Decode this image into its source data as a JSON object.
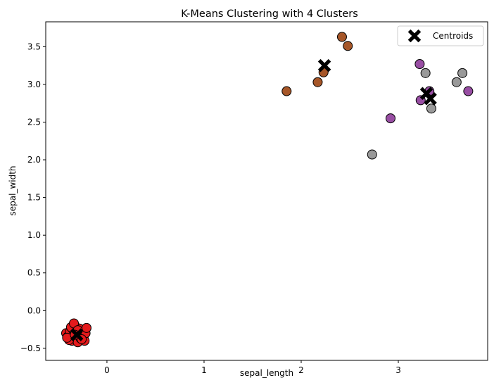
{
  "chart_data": {
    "type": "scatter",
    "title": "K-Means Clustering with 4 Clusters",
    "xlabel": "sepal_length",
    "ylabel": "sepal_width",
    "xlim": [
      -0.63,
      3.92
    ],
    "ylim": [
      -0.66,
      3.83
    ],
    "xticks": [
      0,
      1,
      2,
      3
    ],
    "yticks": [
      -0.5,
      0.0,
      0.5,
      1.0,
      1.5,
      2.0,
      2.5,
      3.0,
      3.5
    ],
    "ytick_labels": [
      "−0.5",
      "0.0",
      "0.5",
      "1.0",
      "1.5",
      "2.0",
      "2.5",
      "3.0",
      "3.5"
    ],
    "xtick_labels": [
      "0",
      "1",
      "2",
      "3"
    ],
    "grid": false,
    "legend": {
      "position": "top-right",
      "entries": [
        {
          "label": "Centroids",
          "marker": "X",
          "color": "#000000"
        }
      ]
    },
    "series": [
      {
        "cluster": 0,
        "color": "#e41a1c",
        "points": [
          [
            -0.42,
            -0.3
          ],
          [
            -0.4,
            -0.34
          ],
          [
            -0.38,
            -0.28
          ],
          [
            -0.36,
            -0.4
          ],
          [
            -0.35,
            -0.25
          ],
          [
            -0.34,
            -0.33
          ],
          [
            -0.33,
            -0.2
          ],
          [
            -0.32,
            -0.36
          ],
          [
            -0.31,
            -0.29
          ],
          [
            -0.3,
            -0.42
          ],
          [
            -0.29,
            -0.31
          ],
          [
            -0.28,
            -0.24
          ],
          [
            -0.27,
            -0.37
          ],
          [
            -0.26,
            -0.33
          ],
          [
            -0.25,
            -0.29
          ],
          [
            -0.24,
            -0.35
          ],
          [
            -0.23,
            -0.4
          ],
          [
            -0.22,
            -0.3
          ],
          [
            -0.21,
            -0.23
          ],
          [
            -0.39,
            -0.39
          ],
          [
            -0.37,
            -0.22
          ],
          [
            -0.41,
            -0.36
          ],
          [
            -0.34,
            -0.17
          ],
          [
            -0.3,
            -0.26
          ],
          [
            -0.26,
            -0.38
          ],
          [
            -0.33,
            -0.32
          ]
        ]
      },
      {
        "cluster": 1,
        "color": "#a65628",
        "points": [
          [
            1.85,
            2.91
          ],
          [
            2.17,
            3.03
          ],
          [
            2.23,
            3.16
          ],
          [
            2.42,
            3.63
          ],
          [
            2.48,
            3.51
          ]
        ]
      },
      {
        "cluster": 2,
        "color": "#984ea3",
        "points": [
          [
            2.92,
            2.55
          ],
          [
            3.22,
            3.27
          ],
          [
            3.23,
            2.79
          ],
          [
            3.32,
            2.91
          ],
          [
            3.72,
            2.91
          ]
        ]
      },
      {
        "cluster": 3,
        "color": "#999999",
        "points": [
          [
            2.73,
            2.07
          ],
          [
            3.28,
            3.15
          ],
          [
            3.34,
            2.68
          ],
          [
            3.6,
            3.03
          ],
          [
            3.66,
            3.15
          ]
        ]
      }
    ],
    "centroids": [
      [
        -0.31,
        -0.32
      ],
      [
        2.24,
        3.25
      ],
      [
        3.29,
        2.88
      ],
      [
        3.33,
        2.81
      ]
    ]
  }
}
